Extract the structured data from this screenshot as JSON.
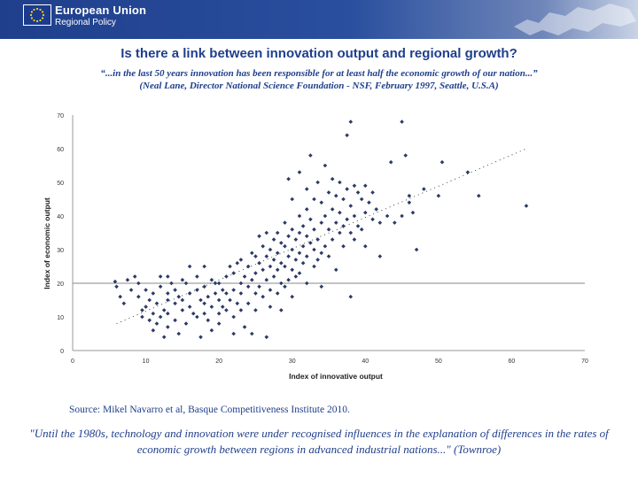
{
  "header": {
    "brand_name": "European Union",
    "brand_sub": "Regional Policy",
    "colors": {
      "primary": "#1f3f8c",
      "star": "#ffd617"
    }
  },
  "slide": {
    "title": "Is there a link between innovation output and regional growth?",
    "quote_line1": "“...in the last 50 years innovation has been responsible for at least half the economic growth of our nation...”",
    "quote_line2": "(Neal Lane, Director National Science Foundation - NSF, February 1997, Seattle, U.S.A)",
    "source": "Source: Mikel Navarro et al, Basque Competitiveness Institute 2010.",
    "bottom_quote": "\"Until the 1980s, technology and innovation were under recognised influences in the explanation of differences in the rates of economic growth between regions in advanced industrial nations...\" (Townroe)"
  },
  "chart_data": {
    "type": "scatter",
    "title": "",
    "xlabel": "Index of innovative output",
    "ylabel": "Index of economic output",
    "xlim": [
      0,
      70
    ],
    "ylim": [
      0,
      70
    ],
    "xticks": [
      0,
      10,
      20,
      30,
      40,
      50,
      60,
      70
    ],
    "yticks": [
      0,
      10,
      20,
      30,
      40,
      50,
      60,
      70
    ],
    "reference_line_y": 20,
    "trendline": {
      "style": "dotted",
      "x": [
        6,
        62
      ],
      "y": [
        8,
        60
      ]
    },
    "point_color": "#2b3a67",
    "points": [
      [
        5.8,
        20.5
      ],
      [
        6,
        19
      ],
      [
        6.5,
        16
      ],
      [
        7,
        14
      ],
      [
        7.5,
        21
      ],
      [
        8,
        18
      ],
      [
        8.5,
        22
      ],
      [
        9,
        20
      ],
      [
        9,
        16
      ],
      [
        9.5,
        12
      ],
      [
        9.5,
        10
      ],
      [
        10,
        18
      ],
      [
        10,
        13
      ],
      [
        10.5,
        15
      ],
      [
        10.5,
        9
      ],
      [
        11,
        17
      ],
      [
        11,
        11
      ],
      [
        11,
        6
      ],
      [
        11.5,
        14
      ],
      [
        11.5,
        8
      ],
      [
        12,
        22
      ],
      [
        12,
        19
      ],
      [
        12,
        10
      ],
      [
        12.5,
        4
      ],
      [
        12.5,
        12
      ],
      [
        13,
        22
      ],
      [
        13,
        17
      ],
      [
        13,
        15
      ],
      [
        13,
        11
      ],
      [
        13,
        7
      ],
      [
        13.5,
        20
      ],
      [
        14,
        18
      ],
      [
        14,
        14
      ],
      [
        14,
        9
      ],
      [
        14.5,
        16
      ],
      [
        14.5,
        5
      ],
      [
        15,
        21
      ],
      [
        15,
        15
      ],
      [
        15,
        12
      ],
      [
        15.5,
        20
      ],
      [
        15.5,
        8
      ],
      [
        16,
        25
      ],
      [
        16,
        17
      ],
      [
        16,
        13
      ],
      [
        16.5,
        11
      ],
      [
        17,
        18
      ],
      [
        17,
        22
      ],
      [
        17,
        10
      ],
      [
        17.5,
        15
      ],
      [
        17.5,
        4
      ],
      [
        18,
        25
      ],
      [
        18,
        19
      ],
      [
        18,
        14
      ],
      [
        18,
        11
      ],
      [
        18.5,
        16
      ],
      [
        18.5,
        9
      ],
      [
        19,
        21
      ],
      [
        19,
        13
      ],
      [
        19,
        6
      ],
      [
        19.5,
        17
      ],
      [
        19.5,
        20
      ],
      [
        20,
        20
      ],
      [
        20,
        15
      ],
      [
        20,
        11
      ],
      [
        20,
        8
      ],
      [
        20.5,
        18
      ],
      [
        20.5,
        13
      ],
      [
        21,
        22
      ],
      [
        21,
        17
      ],
      [
        21,
        12
      ],
      [
        21.5,
        25
      ],
      [
        21.5,
        15
      ],
      [
        22,
        23
      ],
      [
        22,
        18
      ],
      [
        22,
        10
      ],
      [
        22,
        5
      ],
      [
        22.5,
        26
      ],
      [
        22.5,
        14
      ],
      [
        23,
        27
      ],
      [
        23,
        20
      ],
      [
        23,
        17
      ],
      [
        23,
        12
      ],
      [
        23.5,
        22
      ],
      [
        23.5,
        7
      ],
      [
        24,
        25
      ],
      [
        24,
        19
      ],
      [
        24,
        14
      ],
      [
        24.5,
        29
      ],
      [
        24.5,
        21
      ],
      [
        24.5,
        5
      ],
      [
        25,
        28
      ],
      [
        25,
        23
      ],
      [
        25,
        17
      ],
      [
        25,
        12
      ],
      [
        25.5,
        34
      ],
      [
        25.5,
        26
      ],
      [
        25.5,
        19
      ],
      [
        26,
        31
      ],
      [
        26,
        24
      ],
      [
        26,
        16
      ],
      [
        26.5,
        35
      ],
      [
        26.5,
        28
      ],
      [
        26.5,
        21
      ],
      [
        26.5,
        4
      ],
      [
        27,
        30
      ],
      [
        27,
        25
      ],
      [
        27,
        18
      ],
      [
        27,
        13
      ],
      [
        27.5,
        33
      ],
      [
        27.5,
        27
      ],
      [
        27.5,
        22
      ],
      [
        28,
        35
      ],
      [
        28,
        29
      ],
      [
        28,
        24
      ],
      [
        28,
        17
      ],
      [
        28.5,
        32
      ],
      [
        28.5,
        26
      ],
      [
        28.5,
        20
      ],
      [
        28.5,
        12
      ],
      [
        29,
        38
      ],
      [
        29,
        31
      ],
      [
        29,
        25
      ],
      [
        29,
        19
      ],
      [
        29.5,
        51
      ],
      [
        29.5,
        34
      ],
      [
        29.5,
        28
      ],
      [
        29.5,
        21
      ],
      [
        30,
        45
      ],
      [
        30,
        36
      ],
      [
        30,
        30
      ],
      [
        30,
        24
      ],
      [
        30,
        16
      ],
      [
        30.5,
        33
      ],
      [
        30.5,
        27
      ],
      [
        30.5,
        22
      ],
      [
        31,
        53
      ],
      [
        31,
        40
      ],
      [
        31,
        35
      ],
      [
        31,
        29
      ],
      [
        31,
        23
      ],
      [
        31.5,
        37
      ],
      [
        31.5,
        31
      ],
      [
        31.5,
        26
      ],
      [
        32,
        48
      ],
      [
        32,
        42
      ],
      [
        32,
        34
      ],
      [
        32,
        28
      ],
      [
        32,
        20
      ],
      [
        32.5,
        58
      ],
      [
        32.5,
        39
      ],
      [
        32.5,
        32
      ],
      [
        33,
        45
      ],
      [
        33,
        36
      ],
      [
        33,
        30
      ],
      [
        33,
        25
      ],
      [
        33.5,
        50
      ],
      [
        33.5,
        33
      ],
      [
        33.5,
        27
      ],
      [
        34,
        44
      ],
      [
        34,
        38
      ],
      [
        34,
        29
      ],
      [
        34,
        19
      ],
      [
        34.5,
        55
      ],
      [
        34.5,
        40
      ],
      [
        34.5,
        31
      ],
      [
        35,
        47
      ],
      [
        35,
        36
      ],
      [
        35,
        28
      ],
      [
        35.5,
        51
      ],
      [
        35.5,
        42
      ],
      [
        35.5,
        33
      ],
      [
        36,
        46
      ],
      [
        36,
        38
      ],
      [
        36,
        24
      ],
      [
        36.5,
        50
      ],
      [
        36.5,
        41
      ],
      [
        36.5,
        35
      ],
      [
        37,
        45
      ],
      [
        37,
        37
      ],
      [
        37,
        31
      ],
      [
        37.5,
        64
      ],
      [
        37.5,
        48
      ],
      [
        37.5,
        39
      ],
      [
        38,
        68
      ],
      [
        38,
        43
      ],
      [
        38,
        35
      ],
      [
        38,
        16
      ],
      [
        38.5,
        49
      ],
      [
        38.5,
        40
      ],
      [
        38.5,
        33
      ],
      [
        39,
        47
      ],
      [
        39,
        37
      ],
      [
        39.5,
        45
      ],
      [
        39.5,
        36
      ],
      [
        40,
        49
      ],
      [
        40,
        41
      ],
      [
        40,
        31
      ],
      [
        40.5,
        44
      ],
      [
        41,
        39
      ],
      [
        41,
        47
      ],
      [
        41.5,
        42
      ],
      [
        42,
        28
      ],
      [
        42,
        38
      ],
      [
        43,
        40
      ],
      [
        43.5,
        56
      ],
      [
        44,
        38
      ],
      [
        45,
        68
      ],
      [
        45,
        40
      ],
      [
        45.5,
        58
      ],
      [
        46,
        46
      ],
      [
        46,
        44
      ],
      [
        46.5,
        41
      ],
      [
        47,
        30
      ],
      [
        48,
        48
      ],
      [
        50,
        46
      ],
      [
        50.5,
        56
      ],
      [
        54,
        53
      ],
      [
        55.5,
        46
      ],
      [
        62,
        43
      ]
    ]
  }
}
